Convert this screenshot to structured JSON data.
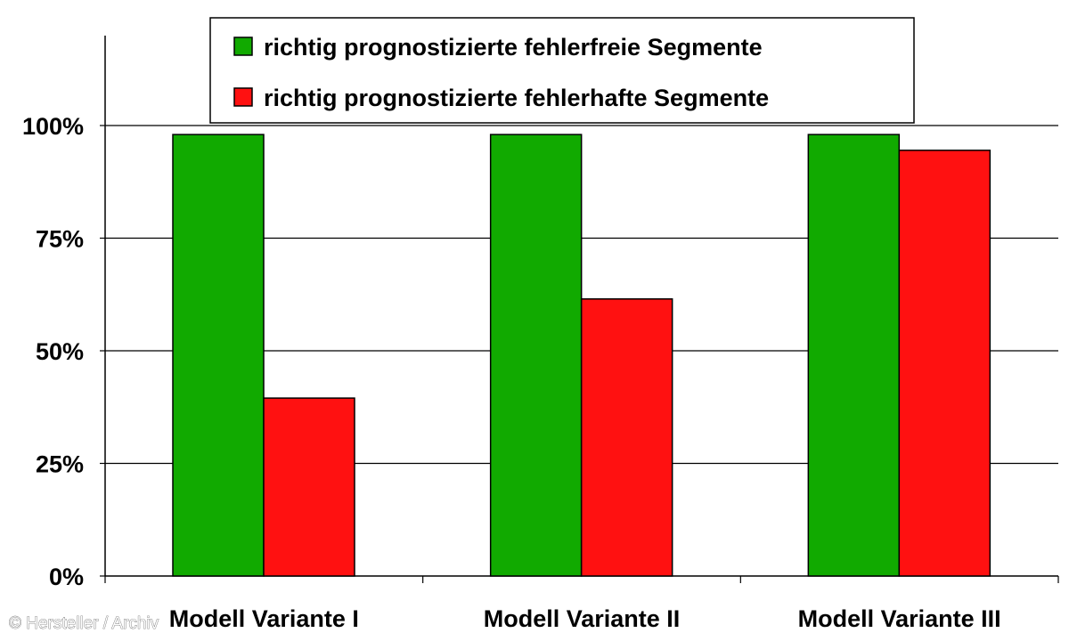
{
  "chart_data": {
    "type": "bar",
    "categories": [
      "Modell Variante I",
      "Modell Variante II",
      "Modell Variante III"
    ],
    "series": [
      {
        "name": "richtig prognostizierte fehlerfreie Segmente",
        "color": "#11aa00",
        "values": [
          98,
          98,
          98
        ]
      },
      {
        "name": "richtig prognostizierte fehlerhafte Segmente",
        "color": "#ff1111",
        "values": [
          39.5,
          61.5,
          94.5
        ]
      }
    ],
    "ylim": [
      0,
      100
    ],
    "yticks": [
      {
        "value": 0,
        "label": "0%"
      },
      {
        "value": 25,
        "label": "25%"
      },
      {
        "value": 50,
        "label": "50%"
      },
      {
        "value": 75,
        "label": "75%"
      },
      {
        "value": 100,
        "label": "100%"
      }
    ],
    "grid": true,
    "legend_position": "top-center",
    "title": "",
    "xlabel": "",
    "ylabel": ""
  },
  "credit": "© Hersteller / Archiv"
}
